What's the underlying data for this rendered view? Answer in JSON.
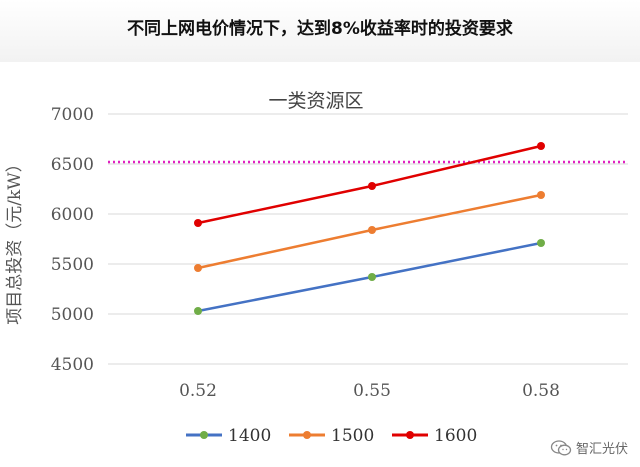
{
  "page_title": "不同上网电价情况下，达到8%收益率时的投资要求",
  "watermark": {
    "text": "智汇光伏",
    "icon": "wechat-icon"
  },
  "chart_data": {
    "type": "line",
    "title": "一类资源区",
    "xlabel": "",
    "ylabel": "项目总投资（元/kW）",
    "categories": [
      "0.52",
      "0.55",
      "0.58"
    ],
    "yticks": [
      4500,
      5000,
      5500,
      6000,
      6500,
      7000
    ],
    "ylim": [
      4500,
      7000
    ],
    "grid": true,
    "legend_position": "bottom",
    "reference_line": {
      "y": 6520,
      "color": "#e020c0",
      "style": "dotted"
    },
    "series": [
      {
        "name": "1400",
        "values": [
          5030,
          5370,
          5710
        ],
        "color": "#4472c4",
        "marker_color": "#70ad47"
      },
      {
        "name": "1500",
        "values": [
          5460,
          5840,
          6190
        ],
        "color": "#ed7d31",
        "marker_color": "#ed7d31"
      },
      {
        "name": "1600",
        "values": [
          5910,
          6280,
          6680
        ],
        "color": "#e00000",
        "marker_color": "#e00000"
      }
    ]
  }
}
